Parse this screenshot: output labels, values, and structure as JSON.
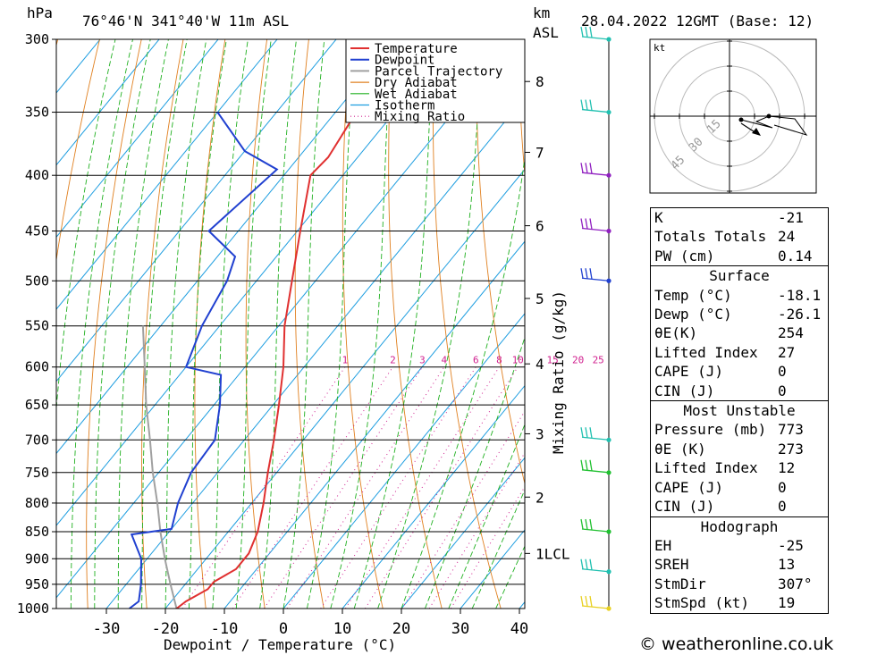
{
  "header": {
    "hpa_unit": "hPa",
    "location": "76°46'N  341°40'W  11m  ASL",
    "km_unit": "km",
    "asl_unit": "ASL",
    "datetime": "28.04.2022  12GMT  (Base: 12)"
  },
  "credit": "© weatheronline.co.uk",
  "hodograph": {
    "unit": "kt",
    "ring_labels": [
      "15",
      "30",
      "45"
    ]
  },
  "info": {
    "top": [
      {
        "k": "K",
        "v": "-21"
      },
      {
        "k": "Totals Totals",
        "v": "24"
      },
      {
        "k": "PW (cm)",
        "v": "0.14"
      }
    ],
    "surface": {
      "title": "Surface",
      "rows": [
        {
          "k": "Temp (°C)",
          "v": "-18.1"
        },
        {
          "k": "Dewp (°C)",
          "v": "-26.1"
        },
        {
          "k": "θE(K)",
          "v": "254"
        },
        {
          "k": "Lifted Index",
          "v": "27"
        },
        {
          "k": "CAPE (J)",
          "v": "0"
        },
        {
          "k": "CIN (J)",
          "v": "0"
        }
      ]
    },
    "most_unstable": {
      "title": "Most Unstable",
      "rows": [
        {
          "k": "Pressure (mb)",
          "v": "773"
        },
        {
          "k": "θE (K)",
          "v": "273"
        },
        {
          "k": "Lifted Index",
          "v": "12"
        },
        {
          "k": "CAPE (J)",
          "v": "0"
        },
        {
          "k": "CIN (J)",
          "v": "0"
        }
      ]
    },
    "hodograph": {
      "title": "Hodograph",
      "rows": [
        {
          "k": "EH",
          "v": "-25"
        },
        {
          "k": "SREH",
          "v": "13"
        },
        {
          "k": "StmDir",
          "v": "307°"
        },
        {
          "k": "StmSpd (kt)",
          "v": "19"
        }
      ]
    }
  },
  "chart_data": {
    "type": "line",
    "title": "76°46'N  341°40'W  11m  ASL",
    "xlabel": "Dewpoint / Temperature (°C)",
    "ylabel": "hPa",
    "mixing_ratio_label": "Mixing Ratio (g/kg)",
    "xlim": [
      -40,
      40
    ],
    "ylim": [
      1000,
      300
    ],
    "x_ticks": [
      -30,
      -20,
      -10,
      0,
      10,
      20,
      30,
      40
    ],
    "pressure_levels": [
      300,
      350,
      400,
      450,
      500,
      550,
      600,
      650,
      700,
      750,
      800,
      850,
      900,
      950,
      1000
    ],
    "km_ticks": [
      {
        "label": "8",
        "p": 328
      },
      {
        "label": "7",
        "p": 381
      },
      {
        "label": "6",
        "p": 445
      },
      {
        "label": "5",
        "p": 519
      },
      {
        "label": "4",
        "p": 596
      },
      {
        "label": "3",
        "p": 691
      },
      {
        "label": "2",
        "p": 790
      },
      {
        "label": "1LCL",
        "p": 890
      }
    ],
    "mixing_ratio_values": [
      "1",
      "2",
      "3",
      "4",
      "6",
      "8",
      "10",
      "15",
      "20",
      "25"
    ],
    "legend": [
      "Temperature",
      "Dewpoint",
      "Parcel Trajectory",
      "Dry Adiabat",
      "Wet Adiabat",
      "Isotherm",
      "Mixing Ratio"
    ],
    "legend_position": "top-right",
    "colors": {
      "temperature": "#e03030",
      "dewpoint": "#2040d0",
      "parcel": "#a0a0a0",
      "dry_adiabat": "#e08020",
      "wet_adiabat": "#20b020",
      "isotherm": "#1e9ee0",
      "mixing_ratio": "#d0208f"
    },
    "series": [
      {
        "name": "Temperature",
        "points": [
          {
            "p": 1000,
            "t": -18.1
          },
          {
            "p": 985,
            "t": -17.5
          },
          {
            "p": 960,
            "t": -15.5
          },
          {
            "p": 945,
            "t": -15.5
          },
          {
            "p": 920,
            "t": -13.5
          },
          {
            "p": 890,
            "t": -13.5
          },
          {
            "p": 850,
            "t": -15.0
          },
          {
            "p": 800,
            "t": -18.0
          },
          {
            "p": 750,
            "t": -21.5
          },
          {
            "p": 700,
            "t": -25.0
          },
          {
            "p": 650,
            "t": -29.0
          },
          {
            "p": 600,
            "t": -33.5
          },
          {
            "p": 550,
            "t": -39.0
          },
          {
            "p": 500,
            "t": -44.0
          },
          {
            "p": 450,
            "t": -49.5
          },
          {
            "p": 400,
            "t": -55.5
          },
          {
            "p": 385,
            "t": -55.0
          },
          {
            "p": 350,
            "t": -56.5
          },
          {
            "p": 320,
            "t": -59.0
          },
          {
            "p": 300,
            "t": -58.5
          }
        ]
      },
      {
        "name": "Dewpoint",
        "points": [
          {
            "p": 1000,
            "t": -26.1
          },
          {
            "p": 985,
            "t": -25.5
          },
          {
            "p": 950,
            "t": -27.5
          },
          {
            "p": 900,
            "t": -31.0
          },
          {
            "p": 855,
            "t": -36.0
          },
          {
            "p": 845,
            "t": -30.0
          },
          {
            "p": 800,
            "t": -32.5
          },
          {
            "p": 750,
            "t": -34.5
          },
          {
            "p": 700,
            "t": -35.0
          },
          {
            "p": 650,
            "t": -39.0
          },
          {
            "p": 610,
            "t": -43.0
          },
          {
            "p": 600,
            "t": -50.0
          },
          {
            "p": 550,
            "t": -53.0
          },
          {
            "p": 500,
            "t": -55.0
          },
          {
            "p": 475,
            "t": -57.0
          },
          {
            "p": 450,
            "t": -65.0
          },
          {
            "p": 395,
            "t": -62.0
          },
          {
            "p": 380,
            "t": -70.0
          },
          {
            "p": 350,
            "t": -80.0
          }
        ]
      },
      {
        "name": "Parcel Trajectory",
        "points": [
          {
            "p": 1000,
            "t": -18.1
          },
          {
            "p": 950,
            "t": -22.5
          },
          {
            "p": 900,
            "t": -27.0
          },
          {
            "p": 850,
            "t": -31.5
          },
          {
            "p": 800,
            "t": -36.0
          },
          {
            "p": 750,
            "t": -41.0
          },
          {
            "p": 700,
            "t": -46.0
          },
          {
            "p": 650,
            "t": -51.5
          },
          {
            "p": 600,
            "t": -57.0
          },
          {
            "p": 550,
            "t": -63.0
          }
        ]
      }
    ],
    "wind_barbs": [
      {
        "p": 1000,
        "color": "#e8d020"
      },
      {
        "p": 925,
        "color": "#20c0b0"
      },
      {
        "p": 850,
        "color": "#20c030"
      },
      {
        "p": 750,
        "color": "#20c030"
      },
      {
        "p": 700,
        "color": "#20c0b0"
      },
      {
        "p": 500,
        "color": "#2040d0"
      },
      {
        "p": 450,
        "color": "#9020c0"
      },
      {
        "p": 400,
        "color": "#9020c0"
      },
      {
        "p": 350,
        "color": "#20c0b0"
      },
      {
        "p": 300,
        "color": "#20c0b0"
      }
    ]
  }
}
